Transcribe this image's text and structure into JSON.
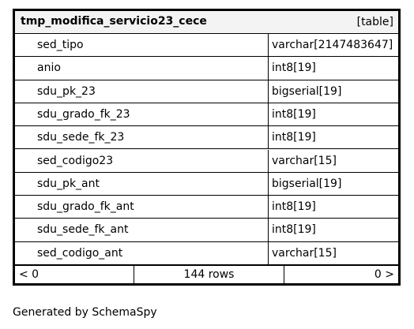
{
  "table": {
    "name": "tmp_modifica_servicio23_cece",
    "kind": "[table]",
    "columns": [
      {
        "name": "sed_tipo",
        "type": "varchar[2147483647]"
      },
      {
        "name": "anio",
        "type": "int8[19]"
      },
      {
        "name": "sdu_pk_23",
        "type": "bigserial[19]"
      },
      {
        "name": "sdu_grado_fk_23",
        "type": "int8[19]"
      },
      {
        "name": "sdu_sede_fk_23",
        "type": "int8[19]"
      },
      {
        "name": "sed_codigo23",
        "type": "varchar[15]"
      },
      {
        "name": "sdu_pk_ant",
        "type": "bigserial[19]"
      },
      {
        "name": "sdu_grado_fk_ant",
        "type": "int8[19]"
      },
      {
        "name": "sdu_sede_fk_ant",
        "type": "int8[19]"
      },
      {
        "name": "sed_codigo_ant",
        "type": "varchar[15]"
      }
    ],
    "footer": {
      "prev": "< 0",
      "rows": "144 rows",
      "next": "0 >"
    }
  },
  "generated_by": "Generated by SchemaSpy"
}
